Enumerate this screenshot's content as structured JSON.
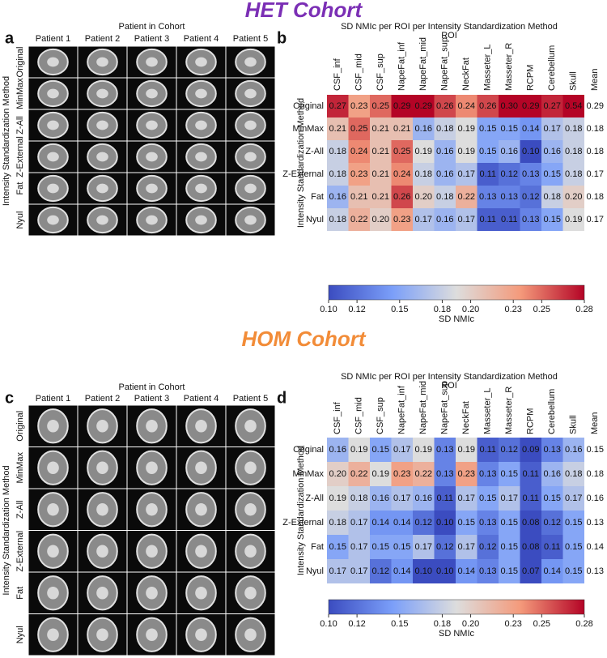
{
  "figure": {
    "cohorts": [
      {
        "title": "HET Cohort",
        "heatmap_letter": "b",
        "image_panel": {
          "letter": "a",
          "xlabel": "Patient in Cohort",
          "ylabel": "Intensity Standardization Method",
          "columns": [
            "Patient 1",
            "Patient 2",
            "Patient 3",
            "Patient 4",
            "Patient 5"
          ],
          "rows": [
            "Original",
            "MinMax",
            "Z-All",
            "Z-External",
            "Fat",
            "Nyul"
          ]
        }
      },
      {
        "title": "HOM Cohort",
        "heatmap_letter": "d",
        "image_panel": {
          "letter": "c",
          "xlabel": "Patient in Cohort",
          "ylabel": "Intensity Standardization Method",
          "columns": [
            "Patient 1",
            "Patient 2",
            "Patient 3",
            "Patient 4",
            "Patient 5"
          ],
          "rows": [
            "Original",
            "MinMax",
            "Z-All",
            "Z-External",
            "Fat",
            "Nyul"
          ]
        }
      }
    ]
  },
  "chart_data": [
    {
      "type": "heatmap",
      "title": "SD NMIc per ROI per Intensity Standardization Method",
      "xlabel": "ROI",
      "ylabel": "Intensity Standardization Method",
      "x": [
        "CSF_inf",
        "CSF_mid",
        "CSF_sup",
        "NapeFat_inf",
        "NapeFat_mid",
        "NapeFat_sup",
        "NeckFat",
        "Masseter_L",
        "Masseter_R",
        "RCPM",
        "Cerebellum",
        "Skull"
      ],
      "mean_label": "Mean",
      "y": [
        "Original",
        "MinMax",
        "Z-All",
        "Z-External",
        "Fat",
        "Nyul"
      ],
      "values": [
        [
          0.27,
          0.23,
          0.25,
          0.29,
          0.29,
          0.26,
          0.24,
          0.26,
          0.3,
          0.29,
          0.27,
          0.54
        ],
        [
          0.21,
          0.25,
          0.21,
          0.21,
          0.16,
          0.18,
          0.19,
          0.15,
          0.15,
          0.14,
          0.17,
          0.18
        ],
        [
          0.18,
          0.24,
          0.21,
          0.25,
          0.19,
          0.16,
          0.19,
          0.15,
          0.16,
          0.1,
          0.16,
          0.18
        ],
        [
          0.18,
          0.23,
          0.21,
          0.24,
          0.18,
          0.16,
          0.17,
          0.11,
          0.12,
          0.13,
          0.15,
          0.18
        ],
        [
          0.16,
          0.21,
          0.21,
          0.26,
          0.2,
          0.18,
          0.22,
          0.13,
          0.13,
          0.12,
          0.18,
          0.2
        ],
        [
          0.18,
          0.22,
          0.2,
          0.23,
          0.17,
          0.16,
          0.17,
          0.11,
          0.11,
          0.13,
          0.15,
          0.19
        ]
      ],
      "value_labels": [
        [
          "0.27",
          "0.23",
          "0.25",
          "0.29",
          "0.29",
          "0.26",
          "0.24",
          "0.26",
          "0.30",
          "0.29",
          "0.27",
          "0.54"
        ],
        [
          "0.21",
          "0.25",
          "0.21",
          "0.21",
          "0.16",
          "0.18",
          "0.19",
          "0.15",
          "0.15",
          "0.14",
          "0.17",
          "0.18"
        ],
        [
          "0.18",
          "0.24",
          "0.21",
          "0.25",
          "0.19",
          "0.16",
          "0.19",
          "0.15",
          "0.16",
          "0.10",
          "0.16",
          "0.18"
        ],
        [
          "0.18",
          "0.23",
          "0.21",
          "0.24",
          "0.18",
          "0.16",
          "0.17",
          "0.11",
          "0.12",
          "0.13",
          "0.15",
          "0.18"
        ],
        [
          "0.16",
          "0.21",
          "0.21",
          "0.26",
          "0.20",
          "0.18",
          "0.22",
          "0.13",
          "0.13",
          "0.12",
          "0.18",
          "0.20"
        ],
        [
          "0.18",
          "0.22",
          "0.20",
          "0.23",
          "0.17",
          "0.16",
          "0.17",
          "0.11",
          "0.11",
          "0.13",
          "0.15",
          "0.19"
        ]
      ],
      "mean_values": [
        0.29,
        0.18,
        0.18,
        0.17,
        0.18,
        0.17
      ],
      "colormap": "coolwarm",
      "clim": [
        0.1,
        0.28
      ],
      "colorbar_label": "SD NMIc",
      "colorbar_ticks": [
        {
          "value": 0.1,
          "label": "0.10"
        },
        0.12,
        0.15,
        0.18,
        {
          "value": 0.2,
          "label": "0.20"
        },
        0.23,
        0.25,
        0.28
      ]
    },
    {
      "type": "heatmap",
      "title": "SD NMIc per ROI per Intensity Standardization Method",
      "xlabel": "ROI",
      "ylabel": "Intensity Standardization Method",
      "x": [
        "CSF_inf",
        "CSF_mid",
        "CSF_sup",
        "NapeFat_inf",
        "NapeFat_mid",
        "NapeFat_sup",
        "NeckFat",
        "Masseter_L",
        "Masseter_R",
        "RCPM",
        "Cerebellum",
        "Skull"
      ],
      "mean_label": "Mean",
      "y": [
        "Original",
        "MinMax",
        "Z-All",
        "Z-External",
        "Fat",
        "Nyul"
      ],
      "values": [
        [
          0.16,
          0.19,
          0.15,
          0.17,
          0.19,
          0.13,
          0.19,
          0.11,
          0.12,
          0.09,
          0.13,
          0.16
        ],
        [
          0.2,
          0.22,
          0.19,
          0.23,
          0.22,
          0.13,
          0.23,
          0.13,
          0.15,
          0.11,
          0.16,
          0.18
        ],
        [
          0.19,
          0.18,
          0.16,
          0.17,
          0.16,
          0.11,
          0.17,
          0.15,
          0.17,
          0.11,
          0.15,
          0.17
        ],
        [
          0.18,
          0.17,
          0.14,
          0.14,
          0.12,
          0.1,
          0.15,
          0.13,
          0.15,
          0.08,
          0.12,
          0.15
        ],
        [
          0.15,
          0.17,
          0.15,
          0.15,
          0.17,
          0.12,
          0.17,
          0.12,
          0.15,
          0.08,
          0.11,
          0.15
        ],
        [
          0.17,
          0.17,
          0.12,
          0.14,
          0.1,
          0.1,
          0.14,
          0.13,
          0.15,
          0.07,
          0.14,
          0.15
        ]
      ],
      "value_labels": [
        [
          "0.16",
          "0.19",
          "0.15",
          "0.17",
          "0.19",
          "0.13",
          "0.19",
          "0.11",
          "0.12",
          "0.09",
          "0.13",
          "0.16"
        ],
        [
          "0.20",
          "0.22",
          "0.19",
          "0.23",
          "0.22",
          "0.13",
          "0.23",
          "0.13",
          "0.15",
          "0.11",
          "0.16",
          "0.18"
        ],
        [
          "0.19",
          "0.18",
          "0.16",
          "0.17",
          "0.16",
          "0.11",
          "0.17",
          "0.15",
          "0.17",
          "0.11",
          "0.15",
          "0.17"
        ],
        [
          "0.18",
          "0.17",
          "0.14",
          "0.14",
          "0.12",
          "0.10",
          "0.15",
          "0.13",
          "0.15",
          "0.08",
          "0.12",
          "0.15"
        ],
        [
          "0.15",
          "0.17",
          "0.15",
          "0.15",
          "0.17",
          "0.12",
          "0.17",
          "0.12",
          "0.15",
          "0.08",
          "0.11",
          "0.15"
        ],
        [
          "0.17",
          "0.17",
          "0.12",
          "0.14",
          "0.10",
          "0.10",
          "0.14",
          "0.13",
          "0.15",
          "0.07",
          "0.14",
          "0.15"
        ]
      ],
      "mean_values": [
        0.15,
        0.18,
        0.16,
        0.13,
        0.14,
        0.13
      ],
      "colormap": "coolwarm",
      "clim": [
        0.1,
        0.28
      ],
      "colorbar_label": "SD NMIc",
      "colorbar_ticks": [
        {
          "value": 0.1,
          "label": "0.10"
        },
        0.12,
        0.15,
        0.18,
        {
          "value": 0.2,
          "label": "0.20"
        },
        0.23,
        0.25,
        0.28
      ]
    }
  ]
}
